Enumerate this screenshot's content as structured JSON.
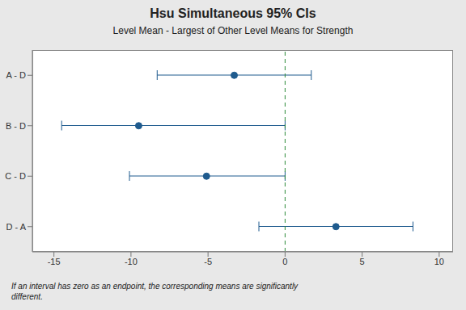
{
  "chart_data": {
    "type": "interval",
    "title": "Hsu Simultaneous 95% CIs",
    "subtitle": "Level Mean - Largest of Other Level Means for Strength",
    "orientation": "horizontal",
    "categories": [
      "A - D",
      "B - D",
      "C - D",
      "D - A"
    ],
    "values": [
      -3.3,
      -9.5,
      -5.1,
      3.3
    ],
    "lower": [
      -8.3,
      -14.5,
      -10.1,
      -1.7
    ],
    "upper": [
      1.7,
      0,
      0,
      8.3
    ],
    "color": "#1f5b8e",
    "marker": "circle",
    "xlim": [
      -16.4,
      10.9
    ],
    "xticks": [
      -15,
      -10,
      -5,
      0,
      5,
      10
    ],
    "reference_x": 0,
    "reference_color": "#2e8b3a",
    "grid": false,
    "annotation": "If an interval has zero as an endpoint, the corresponding means are significantly different."
  }
}
